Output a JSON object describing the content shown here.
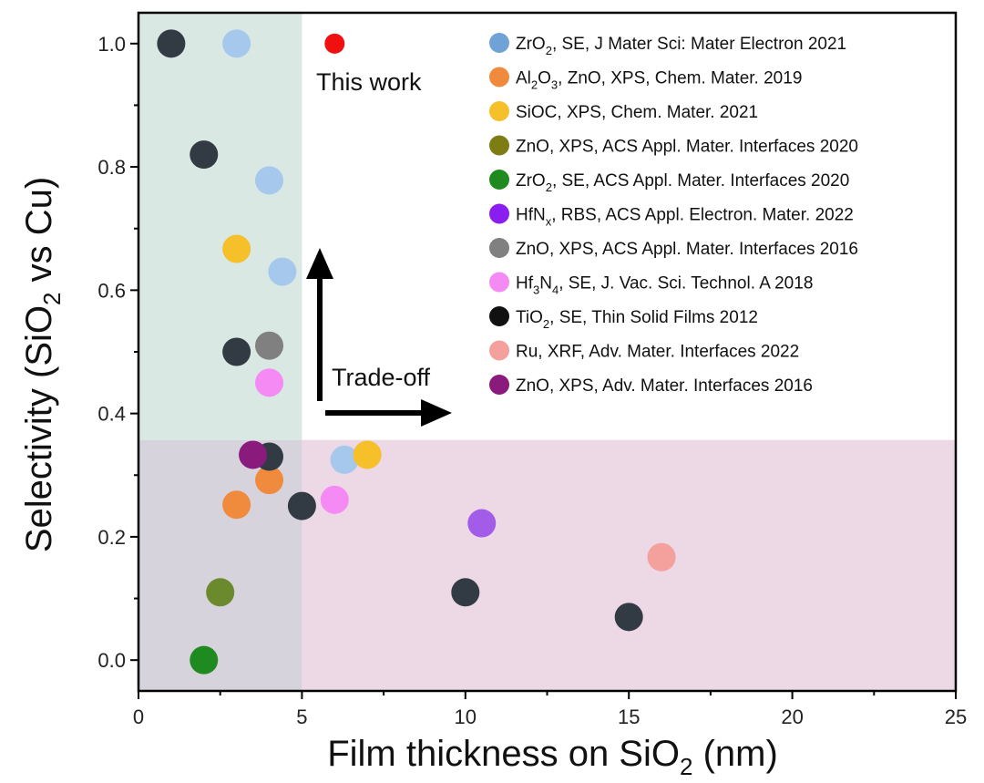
{
  "chart_data": {
    "type": "scatter",
    "xlabel_parts": [
      "Film thickness on SiO",
      "2",
      " (nm)"
    ],
    "ylabel_parts": [
      "Selectivity (SiO",
      "2",
      " vs Cu)"
    ],
    "xlim": [
      0,
      25
    ],
    "ylim": [
      -0.05,
      1.05
    ],
    "x_ticks": [
      0,
      5,
      10,
      15,
      20,
      25
    ],
    "y_ticks": [
      0.0,
      0.2,
      0.4,
      0.6,
      0.8,
      1.0
    ],
    "x_tick_labels": [
      "0",
      "5",
      "10",
      "15",
      "20",
      "25"
    ],
    "y_tick_labels": [
      "0.0",
      "0.2",
      "0.4",
      "0.6",
      "0.8",
      "1.0"
    ],
    "regions": [
      {
        "x": [
          0,
          5
        ],
        "y": [
          0.357,
          1.05
        ],
        "color": "#dae8e4"
      },
      {
        "x": [
          0,
          5
        ],
        "y": [
          -0.05,
          0.357
        ],
        "color": "#d6d3dc"
      },
      {
        "x": [
          5,
          25
        ],
        "y": [
          -0.05,
          0.357
        ],
        "color": "#edd8e6"
      }
    ],
    "annotations": {
      "this_work": "This work",
      "trade_off": "Trade-off"
    },
    "legend_position": "top-right",
    "series": [
      {
        "label": [
          "ZrO",
          {
            "sub": "2"
          },
          ", SE, J Mater Sci: Mater Electron 2021"
        ],
        "color": "#a6c8ec",
        "legend_color": "#6fa2d6",
        "points": [
          [
            3.0,
            1.0
          ],
          [
            4.0,
            0.778
          ],
          [
            4.4,
            0.63
          ],
          [
            6.3,
            0.325
          ]
        ]
      },
      {
        "label": [
          "Al",
          {
            "sub": "2"
          },
          "O",
          {
            "sub": "3"
          },
          ", ZnO, XPS, Chem. Mater. 2019"
        ],
        "color": "#f08a3c",
        "legend_color": "#f08a3c",
        "points": [
          [
            3.0,
            0.252
          ],
          [
            4.0,
            0.292
          ]
        ]
      },
      {
        "label": [
          "SiOC, XPS, Chem. Mater. 2021"
        ],
        "color": "#f5c02a",
        "legend_color": "#f5c02a",
        "points": [
          [
            3.0,
            0.667
          ],
          [
            7.0,
            0.333
          ]
        ]
      },
      {
        "label": [
          "ZnO, XPS, ACS Appl. Mater. Interfaces 2020"
        ],
        "color": "#6b8a2e",
        "legend_color": "#7d7d14",
        "points": [
          [
            2.5,
            0.11
          ]
        ]
      },
      {
        "label": [
          "ZrO",
          {
            "sub": "2"
          },
          ", SE, ACS Appl. Mater. Interfaces 2020"
        ],
        "color": "#1f8a1f",
        "legend_color": "#1f8a1f",
        "points": [
          [
            2.0,
            0.0
          ]
        ]
      },
      {
        "label": [
          "HfN",
          {
            "sub": "x"
          },
          ", RBS, ACS Appl. Electron. Mater. 2022"
        ],
        "color": "#a35ce8",
        "legend_color": "#8a1ef0",
        "points": [
          [
            10.5,
            0.222
          ]
        ]
      },
      {
        "label": [
          "ZnO, XPS, ACS Appl. Mater. Interfaces 2016"
        ],
        "color": "#808080",
        "legend_color": "#808080",
        "points": [
          [
            4.0,
            0.51
          ]
        ]
      },
      {
        "label": [
          "Hf",
          {
            "sub": "3"
          },
          "N",
          {
            "sub": "4"
          },
          ", SE, J. Vac. Sci. Technol. A 2018"
        ],
        "color": "#f58af5",
        "legend_color": "#f58af5",
        "points": [
          [
            4.0,
            0.45
          ],
          [
            6.0,
            0.26
          ]
        ]
      },
      {
        "label": [
          "TiO",
          {
            "sub": "2"
          },
          ", SE, Thin Solid Films 2012"
        ],
        "color": "#323a44",
        "legend_color": "#111111",
        "points": [
          [
            1.0,
            1.0
          ],
          [
            2.0,
            0.82
          ],
          [
            3.0,
            0.5
          ],
          [
            4.0,
            0.33
          ],
          [
            5.0,
            0.25
          ],
          [
            10.0,
            0.11
          ],
          [
            15.0,
            0.07
          ]
        ]
      },
      {
        "label": [
          "Ru, XRF, Adv. Mater. Interfaces 2022"
        ],
        "color": "#f4a09c",
        "legend_color": "#f4a09c",
        "points": [
          [
            16.0,
            0.167
          ]
        ]
      },
      {
        "label": [
          "ZnO, XPS, Adv. Mater. Interfaces 2016"
        ],
        "color": "#8a1a7c",
        "legend_color": "#8a1a7c",
        "points": [
          [
            3.5,
            0.333
          ]
        ]
      }
    ],
    "this_work_point": {
      "x": 6.0,
      "y": 1.0,
      "color": "#f01010"
    }
  }
}
